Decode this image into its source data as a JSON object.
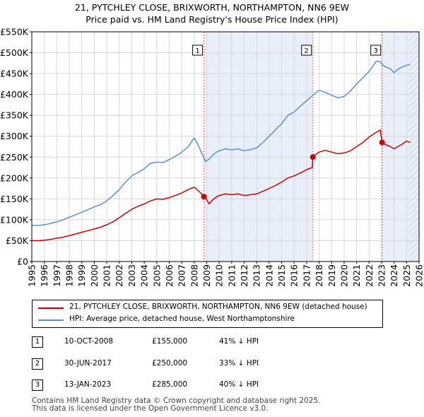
{
  "title_line1": "21, PYTCHLEY CLOSE, BRIXWORTH, NORTHAMPTON, NN6 9EW",
  "title_line2": "Price paid vs. HM Land Registry's House Price Index (HPI)",
  "legend": {
    "property": "21, PYTCHLEY CLOSE, BRIXWORTH, NORTHAMPTON, NN6 9EW (detached house)",
    "hpi": "HPI: Average price, detached house, West Northamptonshire"
  },
  "transactions": [
    {
      "num": "1",
      "date": "10-OCT-2008",
      "price": "£155,000",
      "hpi": "41% ↓ HPI"
    },
    {
      "num": "2",
      "date": "30-JUN-2017",
      "price": "£250,000",
      "hpi": "33% ↓ HPI"
    },
    {
      "num": "3",
      "date": "13-JAN-2023",
      "price": "£285,000",
      "hpi": "40% ↓ HPI"
    }
  ],
  "footer_line1": "Contains HM Land Registry data © Crown copyright and database right 2025.",
  "footer_line2": "This data is licensed under the Open Government Licence v3.0.",
  "colors": {
    "property": "#cc0000",
    "hpi": "#5b8fd0",
    "shade": "#e8eefa",
    "marker_line": "#d46a7e",
    "grid": "#d8d8d8"
  },
  "chart_data": {
    "type": "line",
    "xlim": [
      1995,
      2026
    ],
    "ylim": [
      0,
      550000
    ],
    "y_ticks": [
      0,
      50000,
      100000,
      150000,
      200000,
      250000,
      300000,
      350000,
      400000,
      450000,
      500000,
      550000
    ],
    "y_tick_labels": [
      "£0",
      "£50K",
      "£100K",
      "£150K",
      "£200K",
      "£250K",
      "£300K",
      "£350K",
      "£400K",
      "£450K",
      "£500K",
      "£550K"
    ],
    "x_ticks": [
      1995,
      1996,
      1997,
      1998,
      1999,
      2000,
      2001,
      2002,
      2003,
      2004,
      2005,
      2006,
      2007,
      2008,
      2009,
      2010,
      2011,
      2012,
      2013,
      2014,
      2015,
      2016,
      2017,
      2018,
      2019,
      2020,
      2021,
      2022,
      2023,
      2024,
      2025,
      2026
    ],
    "grid": true,
    "shaded_ranges": [
      [
        2008.78,
        2017.5
      ],
      [
        2023.04,
        2026
      ]
    ],
    "future_hatch_start": 2025.2,
    "sales": [
      {
        "label": "1",
        "x": 2008.78,
        "y": 155000
      },
      {
        "label": "2",
        "x": 2017.5,
        "y": 250000
      },
      {
        "label": "3",
        "x": 2023.04,
        "y": 285000
      }
    ],
    "series": [
      {
        "name": "HPI: Average price, detached house, West Northamptonshire",
        "x": [
          1995,
          1995.5,
          1996,
          1996.5,
          1997,
          1997.5,
          1998,
          1998.5,
          1999,
          1999.5,
          2000,
          2000.5,
          2001,
          2001.5,
          2002,
          2002.5,
          2003,
          2003.5,
          2004,
          2004.5,
          2005,
          2005.5,
          2006,
          2006.5,
          2007,
          2007.5,
          2008,
          2008.3,
          2008.6,
          2008.9,
          2009.2,
          2009.5,
          2009.8,
          2010,
          2010.5,
          2011,
          2011.5,
          2012,
          2012.5,
          2013,
          2013.5,
          2014,
          2014.5,
          2015,
          2015.5,
          2016,
          2016.5,
          2017,
          2017.5,
          2018,
          2018.5,
          2019,
          2019.5,
          2020,
          2020.5,
          2021,
          2021.5,
          2022,
          2022.3,
          2022.6,
          2022.9,
          2023.1,
          2023.4,
          2023.7,
          2024,
          2024.3,
          2024.6,
          2025,
          2025.3
        ],
        "values": [
          87000,
          86000,
          88000,
          91000,
          95000,
          100000,
          106000,
          112000,
          118000,
          124000,
          131000,
          136000,
          145000,
          158000,
          172000,
          190000,
          205000,
          213000,
          222000,
          235000,
          238000,
          237000,
          244000,
          252000,
          262000,
          274000,
          296000,
          280000,
          260000,
          240000,
          245000,
          255000,
          262000,
          265000,
          270000,
          267000,
          270000,
          265000,
          268000,
          272000,
          285000,
          300000,
          315000,
          330000,
          350000,
          358000,
          372000,
          385000,
          398000,
          410000,
          405000,
          398000,
          392000,
          395000,
          408000,
          425000,
          440000,
          455000,
          468000,
          480000,
          478000,
          470000,
          465000,
          462000,
          452000,
          460000,
          465000,
          470000,
          472000
        ]
      },
      {
        "name": "21, PYTCHLEY CLOSE, BRIXWORTH, NORTHAMPTON, NN6 9EW (detached house)",
        "x": [
          1995,
          1995.5,
          1996,
          1996.5,
          1997,
          1997.5,
          1998,
          1998.5,
          1999,
          1999.5,
          2000,
          2000.5,
          2001,
          2001.5,
          2002,
          2002.5,
          2003,
          2003.5,
          2004,
          2004.5,
          2005,
          2005.5,
          2006,
          2006.5,
          2007,
          2007.5,
          2008,
          2008.3,
          2008.6,
          2008.78,
          2009.0,
          2009.2,
          2009.5,
          2009.8,
          2010,
          2010.5,
          2011,
          2011.5,
          2012,
          2012.5,
          2013,
          2013.5,
          2014,
          2014.5,
          2015,
          2015.5,
          2016,
          2016.5,
          2017,
          2017.45,
          2017.5,
          2017.8,
          2018,
          2018.5,
          2019,
          2019.5,
          2020,
          2020.5,
          2021,
          2021.5,
          2022,
          2022.5,
          2022.9,
          2023.04,
          2023.3,
          2023.7,
          2024,
          2024.3,
          2024.6,
          2025,
          2025.3
        ],
        "values": [
          50000,
          50000,
          51000,
          53000,
          56000,
          58000,
          62000,
          66000,
          70000,
          74000,
          78000,
          82000,
          88000,
          95000,
          105000,
          115000,
          125000,
          132000,
          138000,
          145000,
          150000,
          149000,
          153000,
          158000,
          164000,
          172000,
          178000,
          170000,
          162000,
          155000,
          148000,
          138000,
          148000,
          155000,
          158000,
          162000,
          160000,
          162000,
          158000,
          160000,
          162000,
          168000,
          175000,
          182000,
          190000,
          200000,
          205000,
          212000,
          220000,
          225000,
          250000,
          258000,
          262000,
          266000,
          262000,
          258000,
          260000,
          265000,
          275000,
          285000,
          298000,
          308000,
          315000,
          285000,
          280000,
          275000,
          270000,
          275000,
          280000,
          288000,
          285000
        ]
      }
    ]
  }
}
